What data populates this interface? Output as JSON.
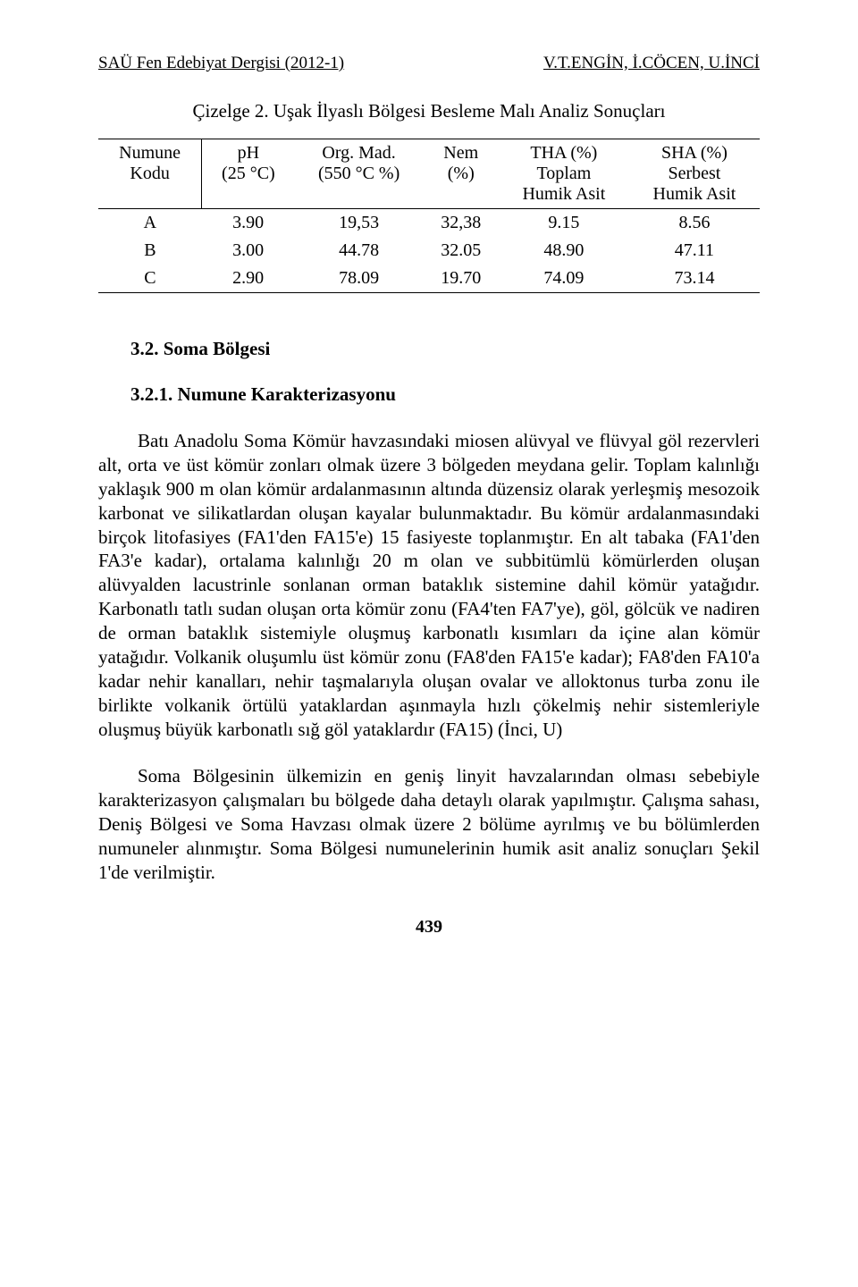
{
  "header": {
    "left": "SAÜ Fen Edebiyat Dergisi (2012-1)",
    "right": "V.T.ENGİN, İ.CÖCEN, U.İNCİ"
  },
  "table": {
    "caption": "Çizelge 2. Uşak İlyaslı Bölgesi Besleme Malı Analiz Sonuçları",
    "columns": {
      "c1_top": "Numune",
      "c1_bot": "Kodu",
      "c2_top": "pH",
      "c2_bot": "(25 °C)",
      "c3_top": "Org. Mad.",
      "c3_bot": "(550 °C %)",
      "c4_top": "Nem",
      "c4_bot": "(%)",
      "c5_top": "THA (%)",
      "c5_bot_a": "Toplam",
      "c5_bot_b": "Humik Asit",
      "c6_top": "SHA (%)",
      "c6_bot_a": "Serbest",
      "c6_bot_b": "Humik Asit"
    },
    "rows": [
      {
        "label": "A",
        "ph": "3.90",
        "org": "19,53",
        "nem": "32,38",
        "tha": "9.15",
        "sha": "8.56"
      },
      {
        "label": "B",
        "ph": "3.00",
        "org": "44.78",
        "nem": "32.05",
        "tha": "48.90",
        "sha": "47.11"
      },
      {
        "label": "C",
        "ph": "2.90",
        "org": "78.09",
        "nem": "19.70",
        "tha": "74.09",
        "sha": "73.14"
      }
    ]
  },
  "sections": {
    "s1": "3.2. Soma Bölgesi",
    "s2": "3.2.1. Numune Karakterizasyonu"
  },
  "paragraphs": {
    "p1": "Batı Anadolu Soma Kömür havzasındaki miosen alüvyal ve flüvyal göl rezervleri alt, orta ve üst kömür zonları olmak üzere 3 bölgeden meydana gelir. Toplam kalınlığı yaklaşık 900 m olan kömür ardalanmasının altında düzensiz olarak yerleşmiş mesozoik karbonat ve silikatlardan oluşan kayalar bulunmaktadır. Bu kömür ardalanmasındaki birçok litofasiyes (FA1'den FA15'e) 15 fasiyeste toplanmıştır. En alt tabaka (FA1'den FA3'e kadar), ortalama kalınlığı 20 m olan ve subbitümlü kömürlerden oluşan alüvyalden lacustrinle sonlanan orman bataklık sistemine dahil kömür yatağıdır. Karbonatlı tatlı sudan oluşan orta kömür zonu (FA4'ten FA7'ye), göl, gölcük ve nadiren de orman bataklık sistemiyle oluşmuş karbonatlı kısımları da içine alan kömür yatağıdır. Volkanik oluşumlu üst kömür zonu (FA8'den FA15'e kadar); FA8'den FA10'a kadar nehir kanalları, nehir taşmalarıyla oluşan ovalar ve alloktonus turba zonu ile birlikte volkanik örtülü yataklardan aşınmayla hızlı çökelmiş nehir sistemleriyle oluşmuş büyük karbonatlı sığ göl yataklardır (FA15) (İnci, U)",
    "p2": "Soma Bölgesinin ülkemizin en geniş linyit havzalarından olması sebebiyle karakterizasyon çalışmaları bu bölgede daha detaylı olarak yapılmıştır. Çalışma sahası, Deniş Bölgesi ve Soma Havzası olmak üzere 2 bölüme ayrılmış ve bu bölümlerden numuneler alınmıştır. Soma Bölgesi numunelerinin humik asit analiz sonuçları Şekil 1'de verilmiştir."
  },
  "page_number": "439"
}
